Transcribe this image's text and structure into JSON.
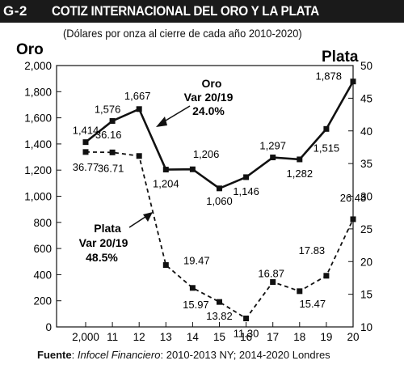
{
  "header": {
    "number": "G-2",
    "title": "COTIZ INTERNACIONAL DEL ORO Y LA PLATA"
  },
  "subtitle": "(Dólares por onza al cierre de cada año 2010-2020)",
  "footer": {
    "label": "Fuente",
    "source": "Infocel Financiero",
    "detail": ": 2010-2013 NY; 2014-2020 Londres"
  },
  "chart_data": {
    "type": "line",
    "categories": [
      "2,000",
      "11",
      "12",
      "13",
      "14",
      "15",
      "16",
      "17",
      "18",
      "19",
      "20"
    ],
    "left_axis": {
      "label": "Oro",
      "range": [
        0,
        2000
      ],
      "ticks": [
        "0",
        "200",
        "400",
        "600",
        "800",
        "1,000",
        "1,200",
        "1,400",
        "1,600",
        "1,800",
        "2,000"
      ]
    },
    "right_axis": {
      "label": "Plata",
      "range": [
        10,
        50
      ],
      "ticks": [
        "10",
        "15",
        "20",
        "25",
        "30",
        "35",
        "40",
        "45",
        "50"
      ]
    },
    "series": [
      {
        "name": "Oro",
        "axis": "left",
        "style": "solid",
        "values": [
          1414,
          1576,
          1667,
          1204,
          1206,
          1060,
          1146,
          1297,
          1282,
          1515,
          1878
        ],
        "labels": [
          "1,414",
          "1,576",
          "1,667",
          "1,204",
          "1,206",
          "1,060",
          "1,146",
          "1,297",
          "1,282",
          "1,515",
          "1,878"
        ]
      },
      {
        "name": "Plata",
        "axis": "right",
        "style": "dashed",
        "values": [
          36.77,
          36.71,
          36.16,
          19.47,
          15.97,
          13.82,
          11.3,
          16.87,
          15.47,
          17.83,
          26.48
        ],
        "labels": [
          "36.77",
          "36.71",
          "36.16",
          "19.47",
          "15.97",
          "13.82",
          "11.30",
          "16.87",
          "15.47",
          "17.83",
          "26.48"
        ]
      }
    ],
    "annotations": [
      {
        "series": "Oro",
        "lines": [
          "Oro",
          "Var 20/19",
          "24.0%"
        ]
      },
      {
        "series": "Plata",
        "lines": [
          "Plata",
          "Var 20/19",
          "48.5%"
        ]
      }
    ],
    "grid": false,
    "legend": "none"
  }
}
